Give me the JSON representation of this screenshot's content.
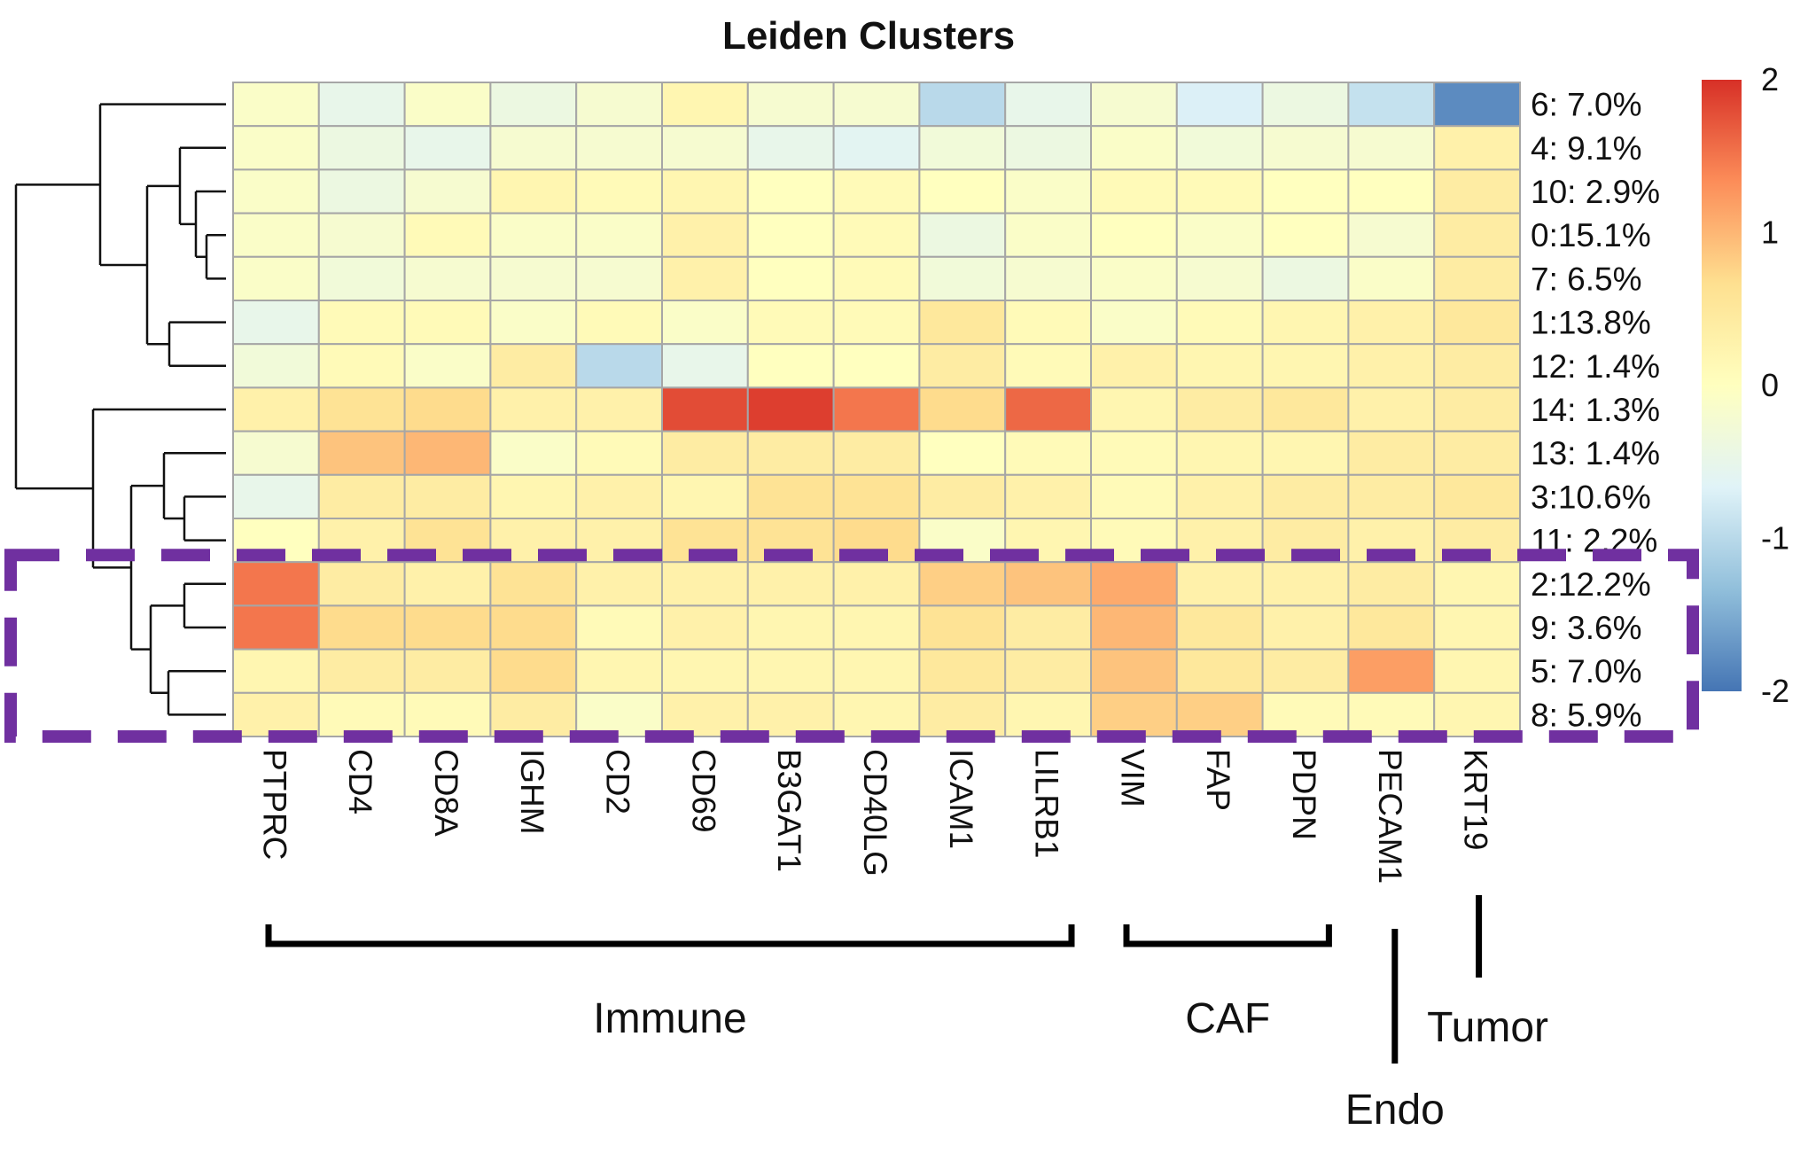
{
  "chart_data": {
    "type": "heatmap",
    "title": "Leiden Clusters",
    "columns": [
      "PTPRC",
      "CD4",
      "CD8A",
      "IGHM",
      "CD2",
      "CD69",
      "B3GAT1",
      "CD40LG",
      "ICAM1",
      "LILRB1",
      "VIM",
      "FAP",
      "PDPN",
      "PECAM1",
      "KRT19"
    ],
    "rows": [
      "6: 7.0%",
      "4: 9.1%",
      "10: 2.9%",
      "0:15.1%",
      "7: 6.5%",
      "1:13.8%",
      "12: 1.4%",
      "14: 1.3%",
      "13: 1.4%",
      "3:10.6%",
      "11: 2.2%",
      "2:12.2%",
      "9: 3.6%",
      "5: 7.0%",
      "8: 5.9%"
    ],
    "values": [
      [
        -0.1,
        -0.5,
        -0.1,
        -0.4,
        -0.2,
        0.2,
        -0.2,
        -0.2,
        -1.0,
        -0.5,
        -0.2,
        -0.7,
        -0.4,
        -0.9,
        -1.8
      ],
      [
        -0.1,
        -0.4,
        -0.5,
        -0.2,
        -0.2,
        -0.2,
        -0.5,
        -0.6,
        -0.3,
        -0.4,
        -0.1,
        -0.3,
        -0.2,
        -0.2,
        0.3
      ],
      [
        -0.1,
        -0.4,
        -0.2,
        0.2,
        0.1,
        0.2,
        0.0,
        0.1,
        0.0,
        -0.1,
        0.1,
        0.1,
        0.0,
        0.0,
        0.4
      ],
      [
        -0.1,
        -0.2,
        0.1,
        -0.1,
        -0.1,
        0.3,
        0.0,
        0.1,
        -0.4,
        -0.1,
        0.0,
        -0.1,
        0.0,
        -0.2,
        0.4
      ],
      [
        -0.1,
        -0.3,
        -0.2,
        -0.2,
        -0.2,
        0.3,
        0.0,
        0.1,
        -0.3,
        -0.2,
        -0.1,
        -0.2,
        -0.4,
        -0.1,
        0.4
      ],
      [
        -0.5,
        0.1,
        0.1,
        -0.1,
        0.1,
        -0.1,
        0.1,
        0.1,
        0.5,
        0.1,
        -0.1,
        0.1,
        0.2,
        0.3,
        0.5
      ],
      [
        -0.3,
        0.1,
        -0.1,
        0.4,
        -1.0,
        -0.5,
        0.0,
        0.0,
        0.4,
        0.1,
        0.3,
        0.2,
        0.2,
        0.3,
        0.4
      ],
      [
        0.3,
        0.6,
        0.7,
        0.3,
        0.3,
        1.8,
        1.9,
        1.5,
        0.7,
        1.6,
        0.2,
        0.4,
        0.5,
        0.3,
        0.4
      ],
      [
        -0.2,
        0.9,
        1.0,
        -0.1,
        0.1,
        0.4,
        0.4,
        0.4,
        0.0,
        0.1,
        0.1,
        0.2,
        0.2,
        0.4,
        0.4
      ],
      [
        -0.5,
        0.4,
        0.4,
        0.2,
        0.3,
        0.2,
        0.6,
        0.6,
        0.4,
        0.3,
        0.1,
        0.3,
        0.4,
        0.4,
        0.5
      ],
      [
        0.0,
        0.3,
        0.6,
        0.3,
        0.3,
        0.6,
        0.6,
        0.7,
        -0.1,
        0.2,
        0.1,
        0.3,
        0.4,
        0.3,
        0.4
      ],
      [
        1.5,
        0.4,
        0.3,
        0.6,
        0.3,
        0.3,
        0.3,
        0.3,
        0.8,
        0.9,
        1.1,
        0.3,
        0.3,
        0.4,
        0.2
      ],
      [
        1.5,
        0.7,
        0.7,
        0.7,
        0.1,
        0.3,
        0.2,
        0.2,
        0.6,
        0.4,
        1.0,
        0.5,
        0.3,
        0.5,
        0.2
      ],
      [
        0.2,
        0.4,
        0.4,
        0.7,
        0.2,
        0.2,
        0.2,
        0.2,
        0.5,
        0.4,
        0.9,
        0.5,
        0.4,
        1.2,
        0.2
      ],
      [
        0.3,
        0.1,
        0.1,
        0.4,
        -0.1,
        0.3,
        0.3,
        0.2,
        0.4,
        0.2,
        0.8,
        0.8,
        0.1,
        0.1,
        0.2
      ]
    ],
    "color_scale": {
      "min": -2,
      "max": 2,
      "ticks": [
        "2",
        "1",
        "0",
        "-1",
        "-2"
      ],
      "colors": [
        "#4575b4",
        "#91bfdb",
        "#e0f3f8",
        "#ffffbf",
        "#fee090",
        "#fc8d59",
        "#d73027"
      ]
    },
    "row_dendrogram": true,
    "highlight_rows": [
      "2:12.2%",
      "9: 3.6%",
      "5: 7.0%",
      "8: 5.9%"
    ],
    "highlight_color": "#7030a0",
    "column_groups": [
      {
        "label": "Immune",
        "columns": [
          "PTPRC",
          "CD4",
          "CD8A",
          "IGHM",
          "CD2",
          "CD69",
          "B3GAT1",
          "CD40LG",
          "ICAM1",
          "LILRB1"
        ]
      },
      {
        "label": "CAF",
        "columns": [
          "VIM",
          "FAP",
          "PDPN"
        ]
      },
      {
        "label": "Endo",
        "columns": [
          "PECAM1"
        ]
      },
      {
        "label": "Tumor",
        "columns": [
          "KRT19"
        ]
      }
    ],
    "legend_position": "right"
  }
}
